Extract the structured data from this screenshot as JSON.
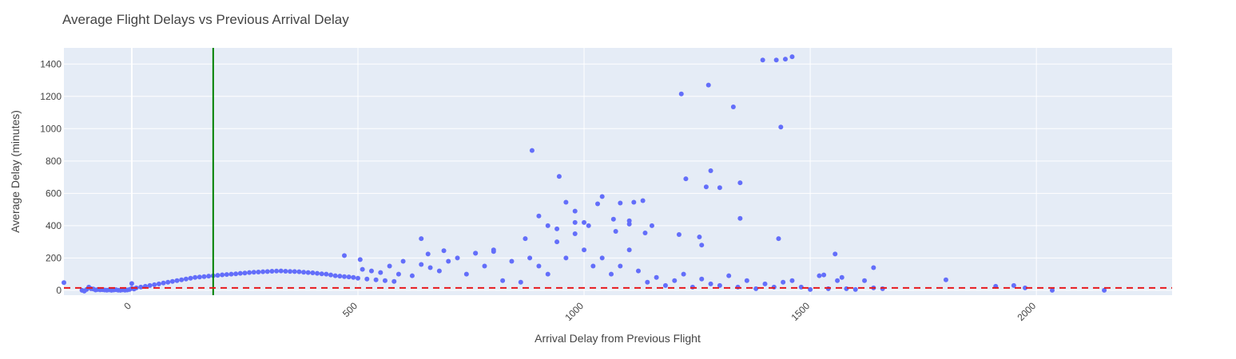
{
  "chart_data": {
    "type": "scatter",
    "title": "Average Flight Delays vs Previous Arrival Delay",
    "xlabel": "Arrival Delay from Previous Flight",
    "ylabel": "Average Delay (minutes)",
    "xlim": [
      -150,
      2300
    ],
    "ylim": [
      -30,
      1500
    ],
    "xticks": [
      0,
      500,
      1000,
      1500,
      2000
    ],
    "xtick_labels": [
      "0",
      "500",
      "1000",
      "1500",
      "2000"
    ],
    "yticks": [
      0,
      200,
      400,
      600,
      800,
      1000,
      1200,
      1400
    ],
    "ytick_labels": [
      "0",
      "200",
      "400",
      "600",
      "800",
      "1000",
      "1200",
      "1400"
    ],
    "grid": true,
    "colors": {
      "marker": "#636efa",
      "plot_background": "#e5ecf6",
      "vertical_line": "#008000",
      "horizontal_line": "#e8191d"
    },
    "reference_lines": {
      "vertical_x": 180,
      "horizontal_y": 15
    },
    "series": [
      {
        "x": [
          -150,
          -110,
          -105,
          -100,
          -95,
          -90,
          -85,
          -80,
          -75,
          -70,
          -65,
          -60,
          -55,
          -50,
          -45,
          -40,
          -35,
          -30,
          -25,
          -20,
          -15,
          -10,
          -5,
          0,
          5,
          0,
          10,
          20,
          30,
          40,
          50,
          60,
          70,
          80,
          90,
          100,
          110,
          120,
          130,
          140,
          150,
          160,
          170,
          180,
          190,
          200,
          210,
          220,
          230,
          240,
          250,
          260,
          270,
          280,
          290,
          300,
          310,
          320,
          330,
          340,
          350,
          360,
          370,
          380,
          390,
          400,
          410,
          420,
          430,
          440,
          450,
          460,
          470,
          480,
          490,
          500,
          510,
          520,
          530,
          540,
          550,
          560,
          570,
          580,
          590,
          600,
          620,
          640,
          660,
          680,
          700,
          720,
          740,
          760,
          780,
          800,
          820,
          840,
          860,
          880,
          900,
          920,
          940,
          960,
          980,
          1000,
          1020,
          1040,
          1060,
          1080,
          1100,
          1120,
          1140,
          1160,
          1180,
          1200,
          1220,
          1240,
          1260,
          1280,
          1300,
          1320,
          1340,
          1360,
          1380,
          1400,
          1420,
          1440,
          1460,
          1480,
          1500,
          1520,
          1540,
          1560,
          1580,
          1600,
          1620,
          1640,
          1660,
          1800,
          1910,
          1950,
          1975,
          2035,
          2150,
          470,
          505,
          640,
          655,
          690,
          760,
          800,
          870,
          885,
          900,
          920,
          945,
          960,
          980,
          1000,
          1030,
          1040,
          1065,
          1080,
          1100,
          1130,
          1150,
          1215,
          1225,
          1270,
          1275,
          1280,
          1300,
          1330,
          1345,
          1395,
          1430,
          1435,
          1445,
          1460,
          1555,
          1640,
          1135,
          1110,
          980,
          940,
          1010,
          1070,
          1100,
          1210,
          1255,
          1260,
          1345,
          1425,
          1530,
          1570
        ],
        "y": [
          48,
          0,
          -5,
          5,
          20,
          10,
          8,
          2,
          5,
          3,
          4,
          2,
          1,
          3,
          0,
          2,
          4,
          1,
          0,
          3,
          1,
          2,
          5,
          42,
          8,
          12,
          15,
          20,
          25,
          30,
          35,
          40,
          45,
          50,
          55,
          60,
          65,
          70,
          75,
          80,
          82,
          85,
          88,
          90,
          93,
          96,
          98,
          100,
          102,
          105,
          107,
          110,
          112,
          113,
          115,
          116,
          118,
          119,
          120,
          118,
          117,
          116,
          115,
          112,
          110,
          108,
          105,
          102,
          100,
          95,
          90,
          88,
          85,
          83,
          80,
          75,
          130,
          70,
          120,
          65,
          110,
          60,
          150,
          55,
          100,
          180,
          90,
          160,
          140,
          120,
          180,
          200,
          100,
          230,
          150,
          240,
          60,
          180,
          50,
          200,
          150,
          100,
          300,
          200,
          350,
          250,
          150,
          200,
          100,
          150,
          250,
          120,
          50,
          80,
          30,
          60,
          100,
          20,
          70,
          40,
          30,
          90,
          20,
          60,
          10,
          40,
          20,
          50,
          60,
          20,
          5,
          90,
          10,
          60,
          10,
          5,
          60,
          15,
          10,
          65,
          25,
          30,
          15,
          0,
          0,
          215,
          190,
          320,
          225,
          245,
          230,
          250,
          320,
          865,
          460,
          400,
          705,
          545,
          490,
          420,
          535,
          580,
          440,
          540,
          410,
          555,
          400,
          1215,
          690,
          640,
          1270,
          740,
          635,
          1135,
          665,
          1425,
          320,
          1010,
          1430,
          1445,
          225,
          140,
          355,
          545,
          420,
          380,
          400,
          365,
          430,
          345,
          330,
          280,
          445,
          1425,
          95,
          80
        ]
      }
    ]
  }
}
